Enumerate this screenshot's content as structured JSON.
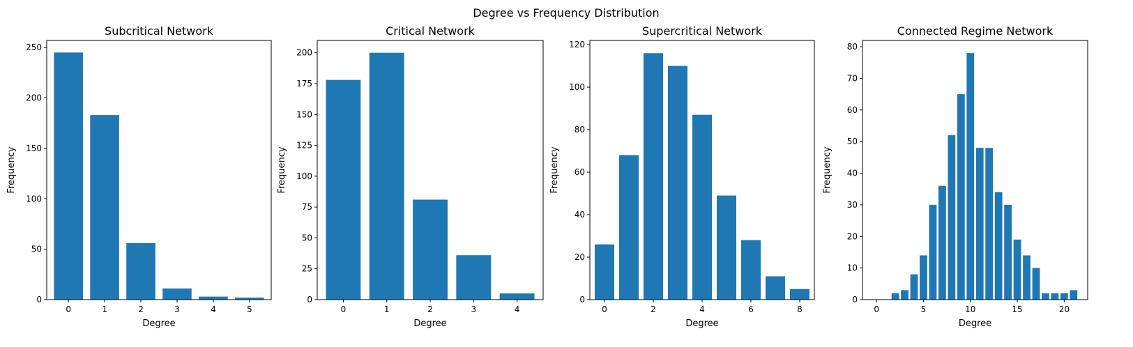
{
  "figure": {
    "suptitle": "Degree vs Frequency Distribution"
  },
  "colors": {
    "bar": "#1f77b4",
    "axis": "#000000",
    "background": "#ffffff"
  },
  "chart_data": [
    {
      "type": "bar",
      "title": "Subcritical Network",
      "xlabel": "Degree",
      "ylabel": "Frequency",
      "x": [
        0,
        1,
        2,
        3,
        4,
        5
      ],
      "values": [
        245,
        183,
        56,
        11,
        3,
        2
      ],
      "xlim": [
        -0.6,
        5.6
      ],
      "ylim": [
        0,
        257
      ],
      "xticks": [
        0,
        1,
        2,
        3,
        4,
        5
      ],
      "yticks": [
        0,
        50,
        100,
        150,
        200,
        250
      ],
      "grid": false,
      "legend": "none"
    },
    {
      "type": "bar",
      "title": "Critical Network",
      "xlabel": "Degree",
      "ylabel": "Frequency",
      "x": [
        0,
        1,
        2,
        3,
        4
      ],
      "values": [
        178,
        200,
        81,
        36,
        5
      ],
      "xlim": [
        -0.6,
        4.6
      ],
      "ylim": [
        0,
        210
      ],
      "xticks": [
        0,
        1,
        2,
        3,
        4
      ],
      "yticks": [
        0,
        25,
        50,
        75,
        100,
        125,
        150,
        175,
        200
      ],
      "grid": false,
      "legend": "none"
    },
    {
      "type": "bar",
      "title": "Supercritical Network",
      "xlabel": "Degree",
      "ylabel": "Frequency",
      "x": [
        0,
        1,
        2,
        3,
        4,
        5,
        6,
        7,
        8
      ],
      "values": [
        26,
        68,
        116,
        110,
        87,
        49,
        28,
        11,
        5
      ],
      "xlim": [
        -0.6,
        8.6
      ],
      "ylim": [
        0,
        122
      ],
      "xticks": [
        0,
        2,
        4,
        6,
        8
      ],
      "yticks": [
        0,
        20,
        40,
        60,
        80,
        100,
        120
      ],
      "grid": false,
      "legend": "none"
    },
    {
      "type": "bar",
      "title": "Connected Regime Network",
      "xlabel": "Degree",
      "ylabel": "Frequency",
      "x": [
        0,
        1,
        2,
        3,
        4,
        5,
        6,
        7,
        8,
        9,
        10,
        11,
        12,
        13,
        14,
        15,
        16,
        17,
        18,
        19,
        20,
        21
      ],
      "values": [
        0,
        0,
        2,
        3,
        8,
        14,
        30,
        36,
        52,
        65,
        78,
        48,
        48,
        34,
        30,
        19,
        14,
        10,
        2,
        2,
        2,
        3
      ],
      "xlim": [
        -1.5,
        22.5
      ],
      "ylim": [
        0,
        82
      ],
      "xticks": [
        0,
        5,
        10,
        15,
        20
      ],
      "yticks": [
        0,
        10,
        20,
        30,
        40,
        50,
        60,
        70,
        80
      ],
      "grid": false,
      "legend": "none"
    }
  ]
}
